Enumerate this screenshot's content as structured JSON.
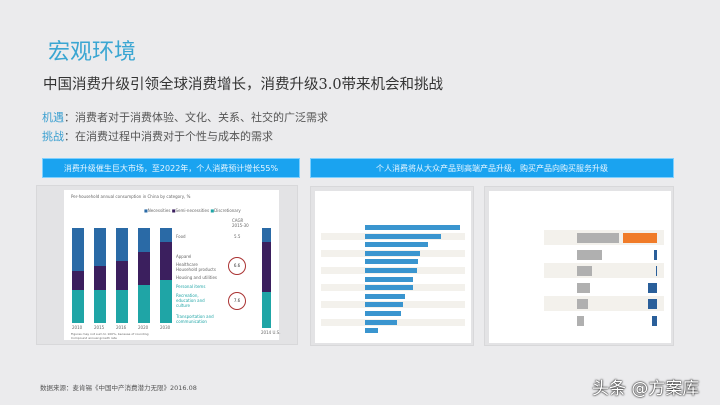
{
  "header": {
    "title": "宏观环境",
    "subtitle": "中国消费升级引领全球消费增长，消费升级3.0带来机会和挑战"
  },
  "points": [
    {
      "key": "机遇",
      "sep": "：",
      "text": "消费者对于消费体验、文化、关系、社交的广泛需求"
    },
    {
      "key": "挑战",
      "sep": "：",
      "text": "在消费过程中消费对于个性与成本的需求"
    }
  ],
  "banners": {
    "left": "消费升级催生巨大市场，至2022年，个人消费预计增长55%",
    "right": "个人消费将从大众产品到高端产品升级，购买产品向购买服务升级"
  },
  "left_chart": {
    "title": "Per-household annual consumption in China by category, %",
    "legend": [
      "Necessities",
      "Semi-necessities",
      "Discretionary"
    ],
    "cagr_label": "CAGR 2015-30",
    "categories": [
      "Food",
      "Apparel",
      "Healthcare",
      "Household products",
      "Housing and utilities",
      "Personal items",
      "Recreation, education and culture",
      "Transportation and communication"
    ],
    "cagr_values": [
      "5.5",
      "6.6",
      "7.6"
    ],
    "years": [
      "2010",
      "2015",
      "2016",
      "2020",
      "2030"
    ],
    "us_label": "2014 U.S.",
    "notes": [
      "Figures may not sum to 100%, because of rounding",
      "Compound annual growth rate"
    ],
    "colors": {
      "necessities": "#2a6aa6",
      "semi": "#3b1f5e",
      "discretionary": "#1fa5a6"
    }
  },
  "footer": {
    "source": "数据来源：麦肯锡《中国中产消费潜力无限》2016.08"
  },
  "watermark": "头条 @方案库"
}
